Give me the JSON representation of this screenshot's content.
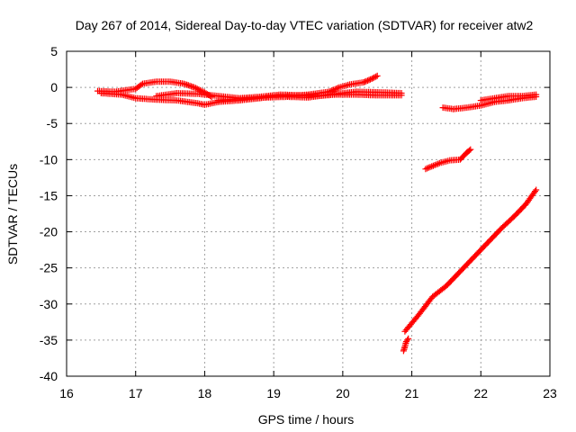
{
  "chart_data": {
    "type": "scatter",
    "title": "Day 267 of 2014, Sidereal Day-to-day VTEC variation (SDTVAR) for receiver atw2",
    "xlabel": "GPS time / hours",
    "ylabel": "SDTVAR / TECUs",
    "xlim": [
      16,
      23
    ],
    "ylim": [
      -40,
      5
    ],
    "xticks": [
      "16",
      "17",
      "18",
      "19",
      "20",
      "21",
      "22",
      "23"
    ],
    "yticks": [
      "5",
      "0",
      "-5",
      "-10",
      "-15",
      "-20",
      "-25",
      "-30",
      "-35",
      "-40"
    ],
    "xtick_values": [
      16,
      17,
      18,
      19,
      20,
      21,
      22,
      23
    ],
    "ytick_values": [
      5,
      0,
      -5,
      -10,
      -15,
      -20,
      -25,
      -30,
      -35,
      -40
    ],
    "grid": true,
    "marker": "plus",
    "color": "#ff0000",
    "series": [
      {
        "points": [
          [
            16.45,
            -0.5
          ],
          [
            16.7,
            -0.6
          ],
          [
            17.0,
            -0.2
          ],
          [
            17.1,
            0.5
          ],
          [
            17.3,
            0.8
          ],
          [
            17.5,
            0.8
          ],
          [
            17.7,
            0.5
          ],
          [
            17.85,
            0.0
          ],
          [
            18.0,
            -0.7
          ],
          [
            18.1,
            -1.3
          ]
        ]
      },
      {
        "points": [
          [
            16.5,
            -0.8
          ],
          [
            16.8,
            -1.0
          ],
          [
            17.0,
            -1.5
          ],
          [
            17.3,
            -1.7
          ],
          [
            17.6,
            -1.8
          ],
          [
            17.9,
            -2.2
          ],
          [
            18.0,
            -2.4
          ],
          [
            18.2,
            -2.0
          ],
          [
            18.5,
            -1.8
          ],
          [
            18.8,
            -1.5
          ],
          [
            19.0,
            -1.2
          ],
          [
            19.3,
            -1.1
          ],
          [
            19.6,
            -1.2
          ],
          [
            19.9,
            -1.0
          ],
          [
            20.2,
            -1.0
          ],
          [
            20.5,
            -1.1
          ],
          [
            20.85,
            -1.1
          ]
        ]
      },
      {
        "points": [
          [
            17.3,
            -1.2
          ],
          [
            17.6,
            -0.8
          ],
          [
            17.9,
            -0.9
          ],
          [
            18.2,
            -1.2
          ],
          [
            18.5,
            -1.5
          ],
          [
            18.8,
            -1.3
          ],
          [
            19.1,
            -1.0
          ],
          [
            19.4,
            -1.1
          ],
          [
            19.6,
            -1.0
          ]
        ]
      },
      {
        "points": [
          [
            18.2,
            -1.8
          ],
          [
            18.5,
            -1.6
          ],
          [
            18.9,
            -1.4
          ],
          [
            19.2,
            -1.3
          ],
          [
            19.5,
            -1.4
          ],
          [
            19.8,
            -1.0
          ],
          [
            20.0,
            -0.8
          ],
          [
            20.2,
            -0.6
          ],
          [
            20.6,
            -0.7
          ],
          [
            20.85,
            -0.8
          ]
        ]
      },
      {
        "points": [
          [
            19.2,
            -1.2
          ],
          [
            19.5,
            -1.0
          ],
          [
            19.8,
            -0.6
          ],
          [
            19.95,
            0.0
          ],
          [
            20.1,
            0.4
          ],
          [
            20.3,
            0.7
          ],
          [
            20.4,
            1.1
          ],
          [
            20.5,
            1.6
          ]
        ]
      },
      {
        "points": [
          [
            21.45,
            -2.8
          ],
          [
            21.6,
            -3.0
          ],
          [
            21.8,
            -2.8
          ],
          [
            22.0,
            -2.5
          ],
          [
            22.2,
            -2.0
          ],
          [
            22.4,
            -1.8
          ],
          [
            22.6,
            -1.5
          ],
          [
            22.8,
            -1.3
          ]
        ]
      },
      {
        "points": [
          [
            22.0,
            -1.8
          ],
          [
            22.2,
            -1.5
          ],
          [
            22.4,
            -1.2
          ],
          [
            22.6,
            -1.2
          ],
          [
            22.8,
            -1.0
          ]
        ]
      },
      {
        "points": [
          [
            21.2,
            -11.3
          ],
          [
            21.4,
            -10.5
          ],
          [
            21.55,
            -10.1
          ],
          [
            21.7,
            -10.0
          ],
          [
            21.8,
            -9.0
          ],
          [
            21.85,
            -8.6
          ]
        ]
      },
      {
        "points": [
          [
            20.9,
            -33.8
          ],
          [
            21.1,
            -31.5
          ],
          [
            21.3,
            -29.0
          ],
          [
            21.5,
            -27.5
          ],
          [
            21.7,
            -25.5
          ],
          [
            21.9,
            -23.5
          ],
          [
            22.1,
            -21.5
          ],
          [
            22.3,
            -19.5
          ],
          [
            22.5,
            -17.7
          ],
          [
            22.65,
            -16.2
          ],
          [
            22.8,
            -14.2
          ]
        ]
      },
      {
        "points": [
          [
            20.88,
            -36.5
          ],
          [
            20.9,
            -35.9
          ],
          [
            20.92,
            -35.2
          ],
          [
            20.95,
            -34.8
          ]
        ]
      }
    ]
  }
}
